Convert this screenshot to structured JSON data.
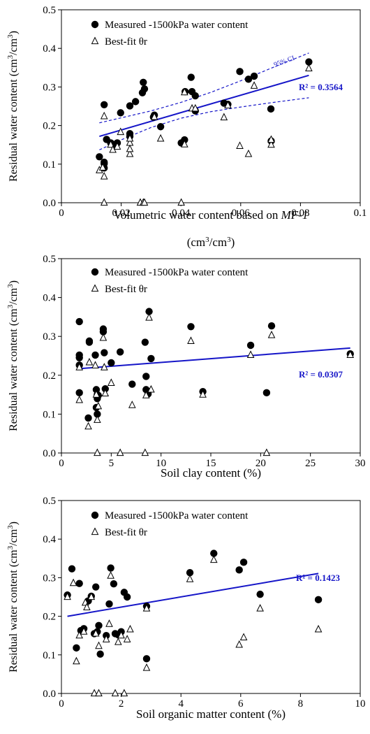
{
  "chart_data": [
    {
      "type": "scatter",
      "title": "",
      "ylabel": "Residual water content (cm3/cm3)",
      "ylabel_parts": {
        "main": "Residual water content (cm",
        "sup1": "3",
        "mid": "/cm",
        "sup2": "3",
        "end": ")"
      },
      "xlabel": "Volumetric water content based on MF-1 (cm3/cm3)",
      "xlabel_parts": {
        "line1_pre": "Volumetric water content based on ",
        "line1_italic": "MF-1",
        "line2_main": "(cm",
        "line2_sup1": "3",
        "line2_mid": "/cm",
        "line2_sup2": "3",
        "line2_end": ")"
      },
      "xlim": [
        0,
        0.1
      ],
      "ylim": [
        0,
        0.5
      ],
      "xticks": [
        0,
        0.02,
        0.04,
        0.06,
        0.08,
        0.1
      ],
      "xtick_labels": [
        "0",
        "0.02",
        "0.04",
        "0.06",
        "0.08",
        "0.1"
      ],
      "yticks": [
        0,
        0.1,
        0.2,
        0.3,
        0.4,
        0.5
      ],
      "ytick_labels": [
        "0.0",
        "0.1",
        "0.2",
        "0.3",
        "0.4",
        "0.5"
      ],
      "series": [
        {
          "name": "Measured -1500kPa water content",
          "marker": "filled-circle",
          "color": "#000000",
          "x": [
            0.0127,
            0.0143,
            0.0143,
            0.0143,
            0.0143,
            0.0151,
            0.0165,
            0.0178,
            0.0187,
            0.0198,
            0.0229,
            0.0229,
            0.0229,
            0.0248,
            0.0271,
            0.0274,
            0.0278,
            0.0308,
            0.0311,
            0.0332,
            0.0401,
            0.0412,
            0.0414,
            0.0434,
            0.0437,
            0.0448,
            0.0448,
            0.0544,
            0.0557,
            0.0597,
            0.0626,
            0.0645,
            0.0701,
            0.0702,
            0.0828
          ],
          "y": [
            0.119,
            0.09,
            0.101,
            0.105,
            0.254,
            0.164,
            0.155,
            0.151,
            0.155,
            0.233,
            0.172,
            0.179,
            0.251,
            0.262,
            0.285,
            0.312,
            0.295,
            0.222,
            0.227,
            0.197,
            0.155,
            0.163,
            0.288,
            0.325,
            0.288,
            0.277,
            0.238,
            0.258,
            0.255,
            0.34,
            0.32,
            0.328,
            0.243,
            0.16,
            0.365
          ]
        },
        {
          "name": "Best-fit θr",
          "marker": "open-triangle",
          "color": "#000000",
          "x": [
            0.0127,
            0.0138,
            0.0143,
            0.0143,
            0.0143,
            0.0165,
            0.0172,
            0.0187,
            0.0198,
            0.0229,
            0.0229,
            0.0229,
            0.0229,
            0.0264,
            0.0274,
            0.0278,
            0.0311,
            0.0332,
            0.0401,
            0.0412,
            0.0412,
            0.0437,
            0.0448,
            0.0544,
            0.0557,
            0.0597,
            0.0626,
            0.0645,
            0.0702,
            0.0702,
            0.0828
          ],
          "y": [
            0.084,
            0.091,
            0.068,
            0.224,
            0.0,
            0.15,
            0.137,
            0.145,
            0.183,
            0.126,
            0.139,
            0.155,
            0.166,
            0.0,
            0.0,
            0.0,
            0.222,
            0.166,
            0.0,
            0.151,
            0.286,
            0.244,
            0.244,
            0.221,
            0.252,
            0.147,
            0.126,
            0.303,
            0.15,
            0.163,
            0.348
          ]
        }
      ],
      "trendline": {
        "x": [
          0.0127,
          0.0828
        ],
        "y": [
          0.172,
          0.33
        ],
        "color": "#1515c8"
      },
      "ci_band": {
        "label": "95% CI",
        "x": [
          0.0127,
          0.02,
          0.03,
          0.04,
          0.05,
          0.06,
          0.07,
          0.0828
        ],
        "upper": [
          0.207,
          0.22,
          0.238,
          0.26,
          0.286,
          0.316,
          0.348,
          0.388
        ],
        "lower": [
          0.137,
          0.163,
          0.195,
          0.219,
          0.236,
          0.248,
          0.259,
          0.272
        ],
        "color": "#1515c8"
      },
      "annotation": {
        "text": "R² = 0.3564",
        "color": "#1515c8"
      },
      "legend": {
        "placement": "top-left"
      },
      "grid": false
    },
    {
      "type": "scatter",
      "title": "",
      "ylabel": "Residual water content (cm3/cm3)",
      "ylabel_parts": {
        "main": "Residual water content (cm",
        "sup1": "3",
        "mid": "/cm",
        "sup2": "3",
        "end": ")"
      },
      "xlabel": "Soil clay content (%)",
      "xlim": [
        0,
        30
      ],
      "ylim": [
        0,
        0.5
      ],
      "xticks": [
        0,
        5,
        10,
        15,
        20,
        25,
        30
      ],
      "xtick_labels": [
        "0",
        "5",
        "10",
        "15",
        "20",
        "25",
        "30"
      ],
      "yticks": [
        0,
        0.1,
        0.2,
        0.3,
        0.4,
        0.5
      ],
      "ytick_labels": [
        "0.0",
        "0.1",
        "0.2",
        "0.3",
        "0.4",
        "0.5"
      ],
      "series": [
        {
          "name": "Measured -1500kPa water content",
          "marker": "filled-circle",
          "color": "#000000",
          "x": [
            1.8,
            1.8,
            1.8,
            1.8,
            1.8,
            2.7,
            2.8,
            2.8,
            3.4,
            3.5,
            3.5,
            3.6,
            3.6,
            3.6,
            3.7,
            4.2,
            4.2,
            4.3,
            4.4,
            5.0,
            5.9,
            7.1,
            8.4,
            8.5,
            8.5,
            8.7,
            8.8,
            9.0,
            13.0,
            14.2,
            19.0,
            20.6,
            21.1,
            29.0
          ],
          "y": [
            0.338,
            0.245,
            0.226,
            0.252,
            0.155,
            0.09,
            0.285,
            0.288,
            0.252,
            0.163,
            0.117,
            0.1,
            0.14,
            0.15,
            0.148,
            0.319,
            0.312,
            0.258,
            0.165,
            0.232,
            0.26,
            0.177,
            0.285,
            0.163,
            0.197,
            0.152,
            0.364,
            0.243,
            0.325,
            0.158,
            0.277,
            0.155,
            0.327,
            0.255
          ]
        },
        {
          "name": "Best-fit θr",
          "marker": "open-triangle",
          "color": "#000000",
          "x": [
            1.8,
            1.8,
            2.7,
            2.8,
            3.4,
            3.5,
            3.6,
            3.6,
            3.7,
            4.2,
            4.3,
            4.4,
            5.0,
            5.9,
            7.1,
            8.4,
            8.5,
            8.8,
            9.0,
            13.0,
            14.2,
            19.0,
            20.6,
            21.1,
            29.0
          ],
          "y": [
            0.22,
            0.136,
            0.068,
            0.233,
            0.225,
            0.15,
            0.085,
            0.0,
            0.12,
            0.296,
            0.22,
            0.153,
            0.18,
            0.0,
            0.123,
            0.0,
            0.148,
            0.348,
            0.163,
            0.288,
            0.15,
            0.252,
            0.0,
            0.303,
            0.252
          ]
        }
      ],
      "trendline": {
        "x": [
          1.8,
          29.0
        ],
        "y": [
          0.217,
          0.27
        ],
        "color": "#1515c8"
      },
      "annotation": {
        "text": "R² = 0.0307",
        "color": "#1515c8"
      },
      "legend": {
        "placement": "top-left"
      },
      "grid": false
    },
    {
      "type": "scatter",
      "title": "",
      "ylabel": "Residual water content (cm3/cm3)",
      "ylabel_parts": {
        "main": "Residual water content (cm",
        "sup1": "3",
        "mid": "/cm",
        "sup2": "3",
        "end": ")"
      },
      "xlabel": "Soil organic matter content (%)",
      "xlim": [
        0,
        10
      ],
      "ylim": [
        0,
        0.5
      ],
      "xticks": [
        0,
        2,
        4,
        6,
        8,
        10
      ],
      "xtick_labels": [
        "0",
        "2",
        "4",
        "6",
        "8",
        "10"
      ],
      "yticks": [
        0,
        0.1,
        0.2,
        0.3,
        0.4,
        0.5
      ],
      "ytick_labels": [
        "0.0",
        "0.1",
        "0.2",
        "0.3",
        "0.4",
        "0.5"
      ],
      "series": [
        {
          "name": "Measured -1500kPa water content",
          "marker": "filled-circle",
          "color": "#000000",
          "x": [
            0.2,
            0.35,
            0.5,
            0.6,
            0.65,
            0.7,
            0.75,
            0.9,
            1.0,
            1.1,
            1.15,
            1.2,
            1.25,
            1.3,
            1.5,
            1.6,
            1.65,
            1.75,
            1.8,
            1.9,
            2.0,
            2.1,
            2.2,
            2.85,
            2.85,
            4.3,
            5.1,
            5.95,
            6.1,
            6.65,
            8.6
          ],
          "y": [
            0.255,
            0.323,
            0.118,
            0.285,
            0.163,
            0.163,
            0.168,
            0.24,
            0.252,
            0.155,
            0.276,
            0.16,
            0.176,
            0.102,
            0.15,
            0.232,
            0.325,
            0.284,
            0.155,
            0.152,
            0.16,
            0.262,
            0.25,
            0.226,
            0.09,
            0.313,
            0.363,
            0.32,
            0.34,
            0.257,
            0.243
          ]
        },
        {
          "name": "Best-fit θr",
          "marker": "open-triangle",
          "color": "#000000",
          "x": [
            0.2,
            0.4,
            0.5,
            0.6,
            0.75,
            0.8,
            0.85,
            1.0,
            1.1,
            1.15,
            1.25,
            1.25,
            1.5,
            1.6,
            1.65,
            1.8,
            1.9,
            2.0,
            2.1,
            2.2,
            2.3,
            2.85,
            2.85,
            4.3,
            5.1,
            5.95,
            6.1,
            6.65,
            8.6
          ],
          "y": [
            0.25,
            0.286,
            0.083,
            0.15,
            0.16,
            0.235,
            0.223,
            0.25,
            0.0,
            0.155,
            0.0,
            0.123,
            0.14,
            0.18,
            0.305,
            0.0,
            0.133,
            0.15,
            0.0,
            0.14,
            0.166,
            0.22,
            0.066,
            0.296,
            0.346,
            0.126,
            0.145,
            0.22,
            0.166
          ]
        }
      ],
      "trendline": {
        "x": [
          0.2,
          8.6
        ],
        "y": [
          0.2,
          0.311
        ],
        "color": "#1515c8"
      },
      "annotation": {
        "text": "R² = 0.1423",
        "color": "#1515c8"
      },
      "legend": {
        "placement": "top-left"
      },
      "grid": false
    }
  ]
}
